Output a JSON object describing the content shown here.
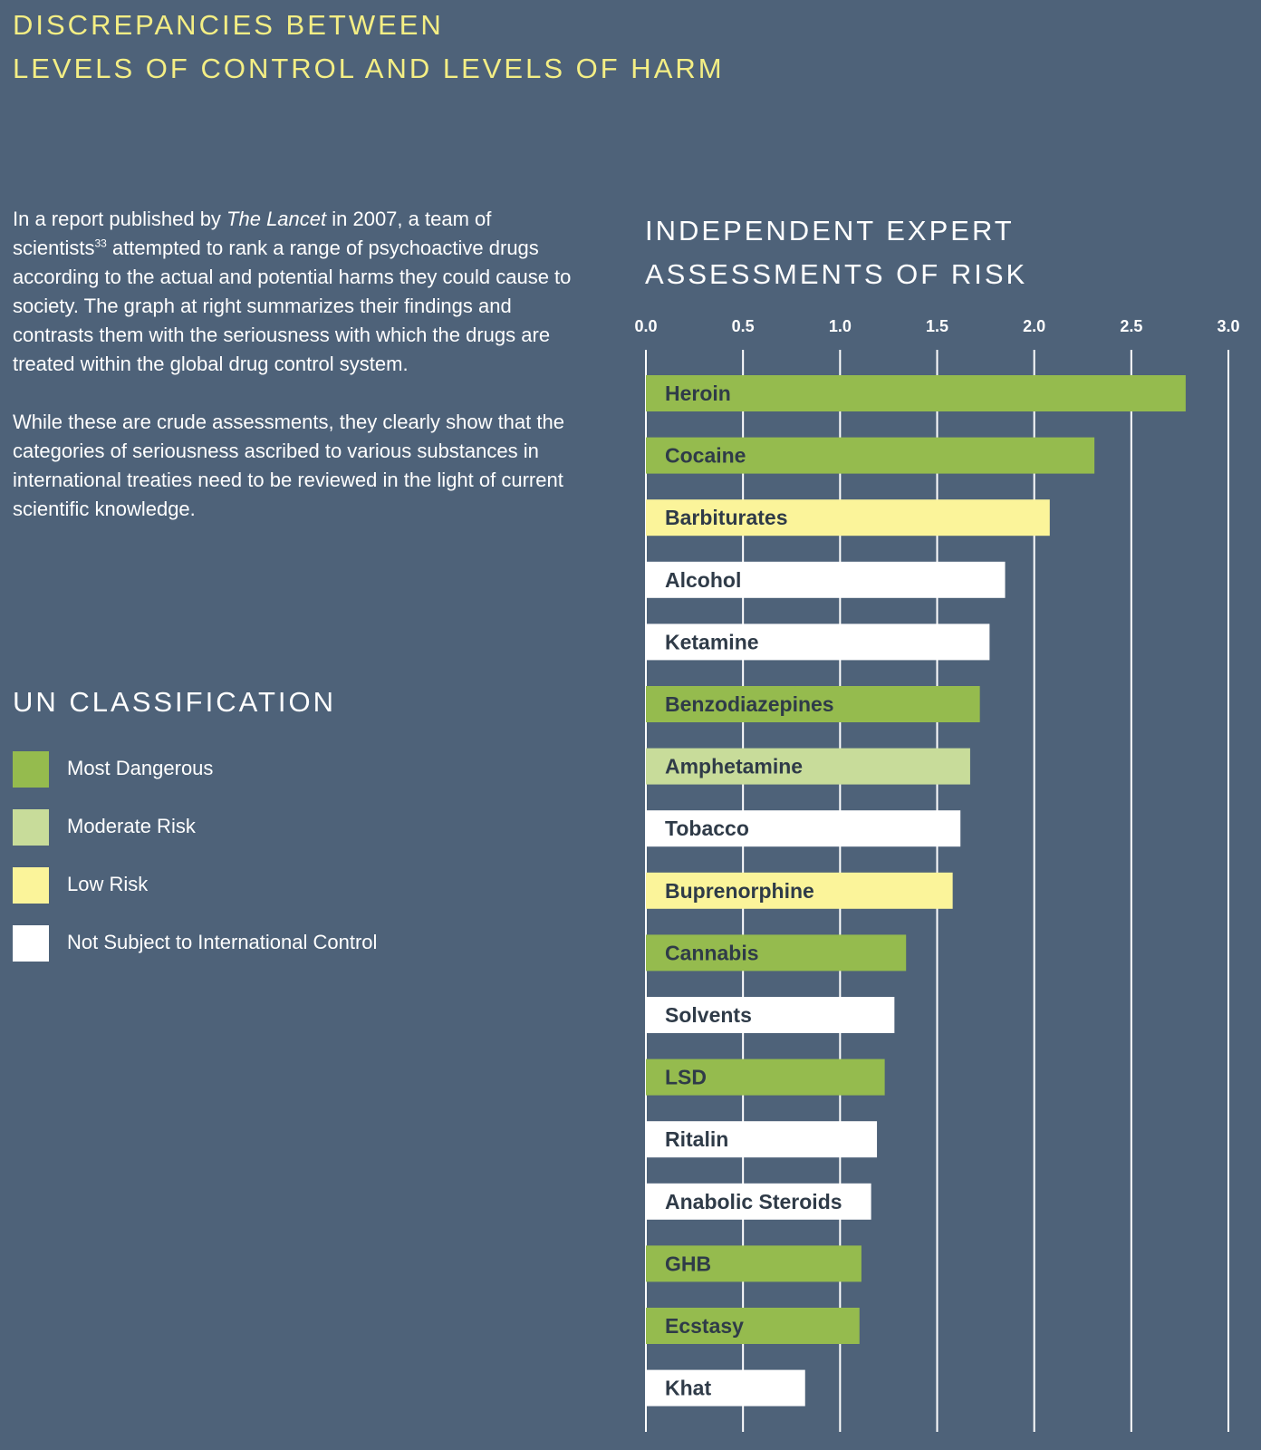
{
  "title": {
    "line1": "DISCREPANCIES BETWEEN",
    "line2": "LEVELS OF CONTROL AND LEVELS OF HARM"
  },
  "intro": {
    "p1_before": "In a report published by ",
    "p1_italic": "The Lancet",
    "p1_mid": " in 2007, a team of scientists",
    "p1_sup": "33",
    "p1_after": " attempted to rank a range of psychoactive drugs according to the actual and potential harms they could cause to society. The graph at right summarizes their findings and contrasts them with the seriousness with which the drugs are treated within the global drug control system.",
    "p2": "While these are crude assessments, they clearly show that the categories of seriousness ascribed to various substances in international treaties need to be reviewed in the light of current scientific knowledge."
  },
  "legend": {
    "title": "UN CLASSIFICATION",
    "items": [
      {
        "label": "Most Dangerous",
        "color": "#95bb4e"
      },
      {
        "label": "Moderate Risk",
        "color": "#c8dc9a"
      },
      {
        "label": "Low Risk",
        "color": "#fbf49a"
      },
      {
        "label": "Not Subject to International Control",
        "color": "#ffffff"
      }
    ]
  },
  "chart_data": {
    "type": "bar",
    "orientation": "horizontal",
    "title_line1": "INDEPENDENT EXPERT",
    "title_line2": "ASSESSMENTS OF RISK",
    "xlim": [
      0,
      3.0
    ],
    "ticks": [
      "0.0",
      "0.5",
      "1.0",
      "1.5",
      "2.0",
      "2.5",
      "3.0"
    ],
    "tick_values": [
      0,
      0.5,
      1.0,
      1.5,
      2.0,
      2.5,
      3.0
    ],
    "grid": true,
    "categories": [
      "Heroin",
      "Cocaine",
      "Barbiturates",
      "Alcohol",
      "Ketamine",
      "Benzodiazepines",
      "Amphetamine",
      "Tobacco",
      "Buprenorphine",
      "Cannabis",
      "Solvents",
      "LSD",
      "Ritalin",
      "Anabolic Steroids",
      "GHB",
      "Ecstasy",
      "Khat"
    ],
    "values": [
      2.78,
      2.31,
      2.08,
      1.85,
      1.77,
      1.72,
      1.67,
      1.62,
      1.58,
      1.34,
      1.28,
      1.23,
      1.19,
      1.16,
      1.11,
      1.1,
      0.82
    ],
    "classification": [
      "Most Dangerous",
      "Most Dangerous",
      "Low Risk",
      "Not Subject to International Control",
      "Not Subject to International Control",
      "Most Dangerous",
      "Moderate Risk",
      "Not Subject to International Control",
      "Low Risk",
      "Most Dangerous",
      "Not Subject to International Control",
      "Most Dangerous",
      "Not Subject to International Control",
      "Not Subject to International Control",
      "Most Dangerous",
      "Most Dangerous",
      "Not Subject to International Control"
    ]
  }
}
